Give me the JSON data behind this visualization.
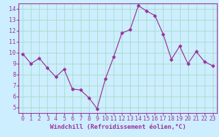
{
  "x": [
    0,
    1,
    2,
    3,
    4,
    5,
    6,
    7,
    8,
    9,
    10,
    11,
    12,
    13,
    14,
    15,
    16,
    17,
    18,
    19,
    20,
    21,
    22,
    23
  ],
  "y": [
    9.9,
    9.0,
    9.5,
    8.6,
    7.8,
    8.5,
    6.7,
    6.6,
    5.9,
    4.9,
    7.6,
    9.6,
    11.8,
    12.1,
    14.3,
    13.8,
    13.4,
    11.7,
    9.4,
    10.6,
    9.0,
    10.1,
    9.2,
    8.8
  ],
  "line_color": "#993399",
  "marker": "D",
  "marker_size": 2.5,
  "background_color": "#cceeff",
  "grid_color": "#aaddcc",
  "xlabel": "Windchill (Refroidissement éolien,°C)",
  "xlabel_fontsize": 6.5,
  "xlim": [
    -0.5,
    23.5
  ],
  "ylim": [
    4.5,
    14.5
  ],
  "yticks": [
    5,
    6,
    7,
    8,
    9,
    10,
    11,
    12,
    13,
    14
  ],
  "xticks": [
    0,
    1,
    2,
    3,
    4,
    5,
    6,
    7,
    8,
    9,
    10,
    11,
    12,
    13,
    14,
    15,
    16,
    17,
    18,
    19,
    20,
    21,
    22,
    23
  ],
  "tick_fontsize": 6.0,
  "tick_color": "#993399",
  "label_color": "#993399",
  "spine_color": "#993399"
}
